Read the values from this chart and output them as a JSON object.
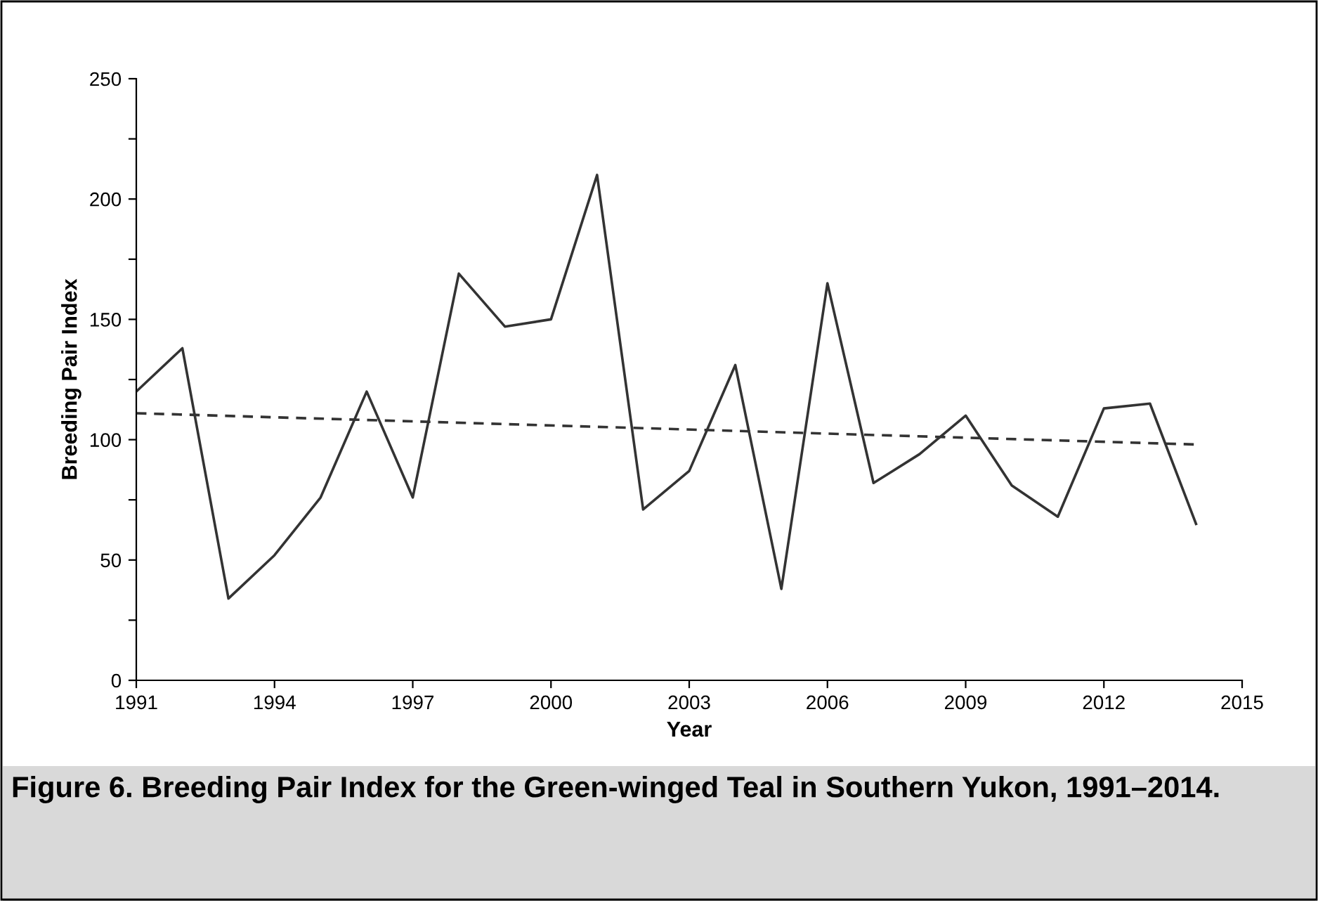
{
  "chart_data": {
    "type": "line",
    "xlabel": "Year",
    "ylabel": "Breeding Pair Index",
    "annotations": [
      "Figure 6. Breeding Pair Index for the Green-winged Teal in Southern Yukon, 1991–2014."
    ],
    "x": [
      1991,
      1992,
      1993,
      1994,
      1995,
      1996,
      1997,
      1998,
      1999,
      2000,
      2001,
      2002,
      2003,
      2004,
      2005,
      2006,
      2007,
      2008,
      2009,
      2010,
      2011,
      2012,
      2013,
      2014
    ],
    "series": [
      {
        "color": "#333333",
        "line_style": "solid",
        "values": [
          120,
          138,
          34,
          52,
          76,
          120,
          76,
          169,
          147,
          150,
          210,
          71,
          87,
          131,
          38,
          165,
          82,
          94,
          110,
          81,
          68,
          113,
          115,
          65
        ]
      },
      {
        "type": "line",
        "color": "#333333",
        "line_style": "dashed",
        "x": [
          1991,
          2014
        ],
        "values": [
          111,
          98
        ]
      }
    ],
    "xlim": [
      1991,
      2015
    ],
    "xticks": [
      1991,
      1994,
      1997,
      2000,
      2003,
      2006,
      2009,
      2012,
      2015
    ],
    "ylim": [
      0,
      250
    ],
    "yticks": [
      0,
      {
        "value": 25,
        "label": null
      },
      50,
      {
        "value": 75,
        "label": null
      },
      100,
      {
        "value": 125,
        "label": null
      },
      150,
      {
        "value": 175,
        "label": null
      },
      200,
      {
        "value": 225,
        "label": null
      },
      250
    ],
    "grid": false,
    "legend": false,
    "marker": "none"
  }
}
